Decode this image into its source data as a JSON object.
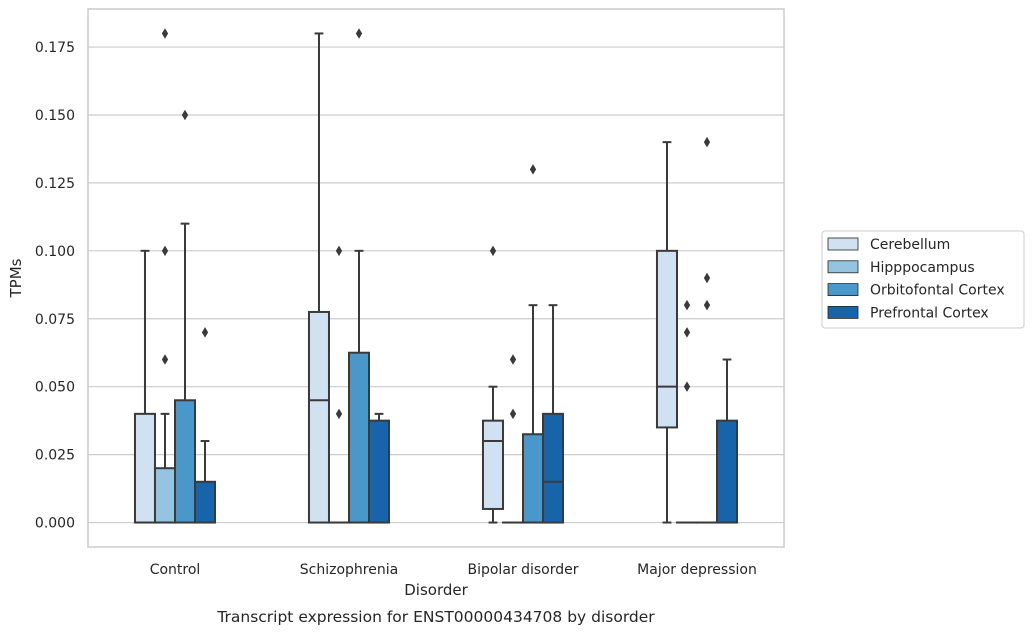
{
  "caption": "Transcript expression for ENST00000434708 by disorder",
  "chart_data": {
    "type": "box",
    "xlabel": "Disorder",
    "ylabel": "TPMs",
    "ylim": [
      -0.009,
      0.189
    ],
    "yticks": [
      0.0,
      0.025,
      0.05,
      0.075,
      0.1,
      0.125,
      0.15,
      0.175
    ],
    "ytick_labels": [
      "0.000",
      "0.025",
      "0.050",
      "0.075",
      "0.100",
      "0.125",
      "0.150",
      "0.175"
    ],
    "grid": true,
    "legend_position": "right",
    "categories": [
      "Control",
      "Schizophrenia",
      "Bipolar disorder",
      "Major depression"
    ],
    "series": [
      {
        "name": "Cerebellum",
        "color": "#d0e1f2",
        "boxes": [
          {
            "whislo": 0.0,
            "q1": 0.0,
            "med": 0.0,
            "q3": 0.04,
            "whishi": 0.1,
            "fliers": []
          },
          {
            "whislo": 0.0,
            "q1": 0.0,
            "med": 0.045,
            "q3": 0.0775,
            "whishi": 0.18,
            "fliers": []
          },
          {
            "whislo": 0.0,
            "q1": 0.005,
            "med": 0.03,
            "q3": 0.0375,
            "whishi": 0.05,
            "fliers": [
              0.1
            ]
          },
          {
            "whislo": 0.0,
            "q1": 0.035,
            "med": 0.05,
            "q3": 0.1,
            "whishi": 0.14,
            "fliers": []
          }
        ]
      },
      {
        "name": "Hipppocampus",
        "color": "#94c4df",
        "boxes": [
          {
            "whislo": 0.0,
            "q1": 0.0,
            "med": 0.0,
            "q3": 0.02,
            "whishi": 0.04,
            "fliers": [
              0.06,
              0.1,
              0.18
            ]
          },
          {
            "whislo": 0.0,
            "q1": 0.0,
            "med": 0.0,
            "q3": 0.0,
            "whishi": 0.0,
            "fliers": [
              0.04,
              0.1
            ]
          },
          {
            "whislo": 0.0,
            "q1": 0.0,
            "med": 0.0,
            "q3": 0.0,
            "whishi": 0.0,
            "fliers": [
              0.04,
              0.06
            ]
          },
          {
            "whislo": 0.0,
            "q1": 0.0,
            "med": 0.0,
            "q3": 0.0,
            "whishi": 0.0,
            "fliers": [
              0.05,
              0.07,
              0.08
            ]
          }
        ]
      },
      {
        "name": "Orbitofontal Cortex",
        "color": "#4a98c9",
        "boxes": [
          {
            "whislo": 0.0,
            "q1": 0.0,
            "med": 0.0,
            "q3": 0.045,
            "whishi": 0.11,
            "fliers": [
              0.15
            ]
          },
          {
            "whislo": 0.0,
            "q1": 0.0,
            "med": 0.0,
            "q3": 0.0625,
            "whishi": 0.1,
            "fliers": [
              0.18
            ]
          },
          {
            "whislo": 0.0,
            "q1": 0.0,
            "med": 0.0,
            "q3": 0.0325,
            "whishi": 0.08,
            "fliers": [
              0.13
            ]
          },
          {
            "whislo": 0.0,
            "q1": 0.0,
            "med": 0.0,
            "q3": 0.0,
            "whishi": 0.0,
            "fliers": [
              0.08,
              0.09,
              0.14
            ]
          }
        ]
      },
      {
        "name": "Prefrontal Cortex",
        "color": "#1764ab",
        "boxes": [
          {
            "whislo": 0.0,
            "q1": 0.0,
            "med": 0.0,
            "q3": 0.015,
            "whishi": 0.03,
            "fliers": [
              0.07
            ]
          },
          {
            "whislo": 0.0,
            "q1": 0.0,
            "med": 0.0,
            "q3": 0.0375,
            "whishi": 0.04,
            "fliers": []
          },
          {
            "whislo": 0.0,
            "q1": 0.0,
            "med": 0.015,
            "q3": 0.04,
            "whishi": 0.08,
            "fliers": []
          },
          {
            "whislo": 0.0,
            "q1": 0.0,
            "med": 0.0,
            "q3": 0.0375,
            "whishi": 0.06,
            "fliers": []
          }
        ]
      }
    ]
  }
}
